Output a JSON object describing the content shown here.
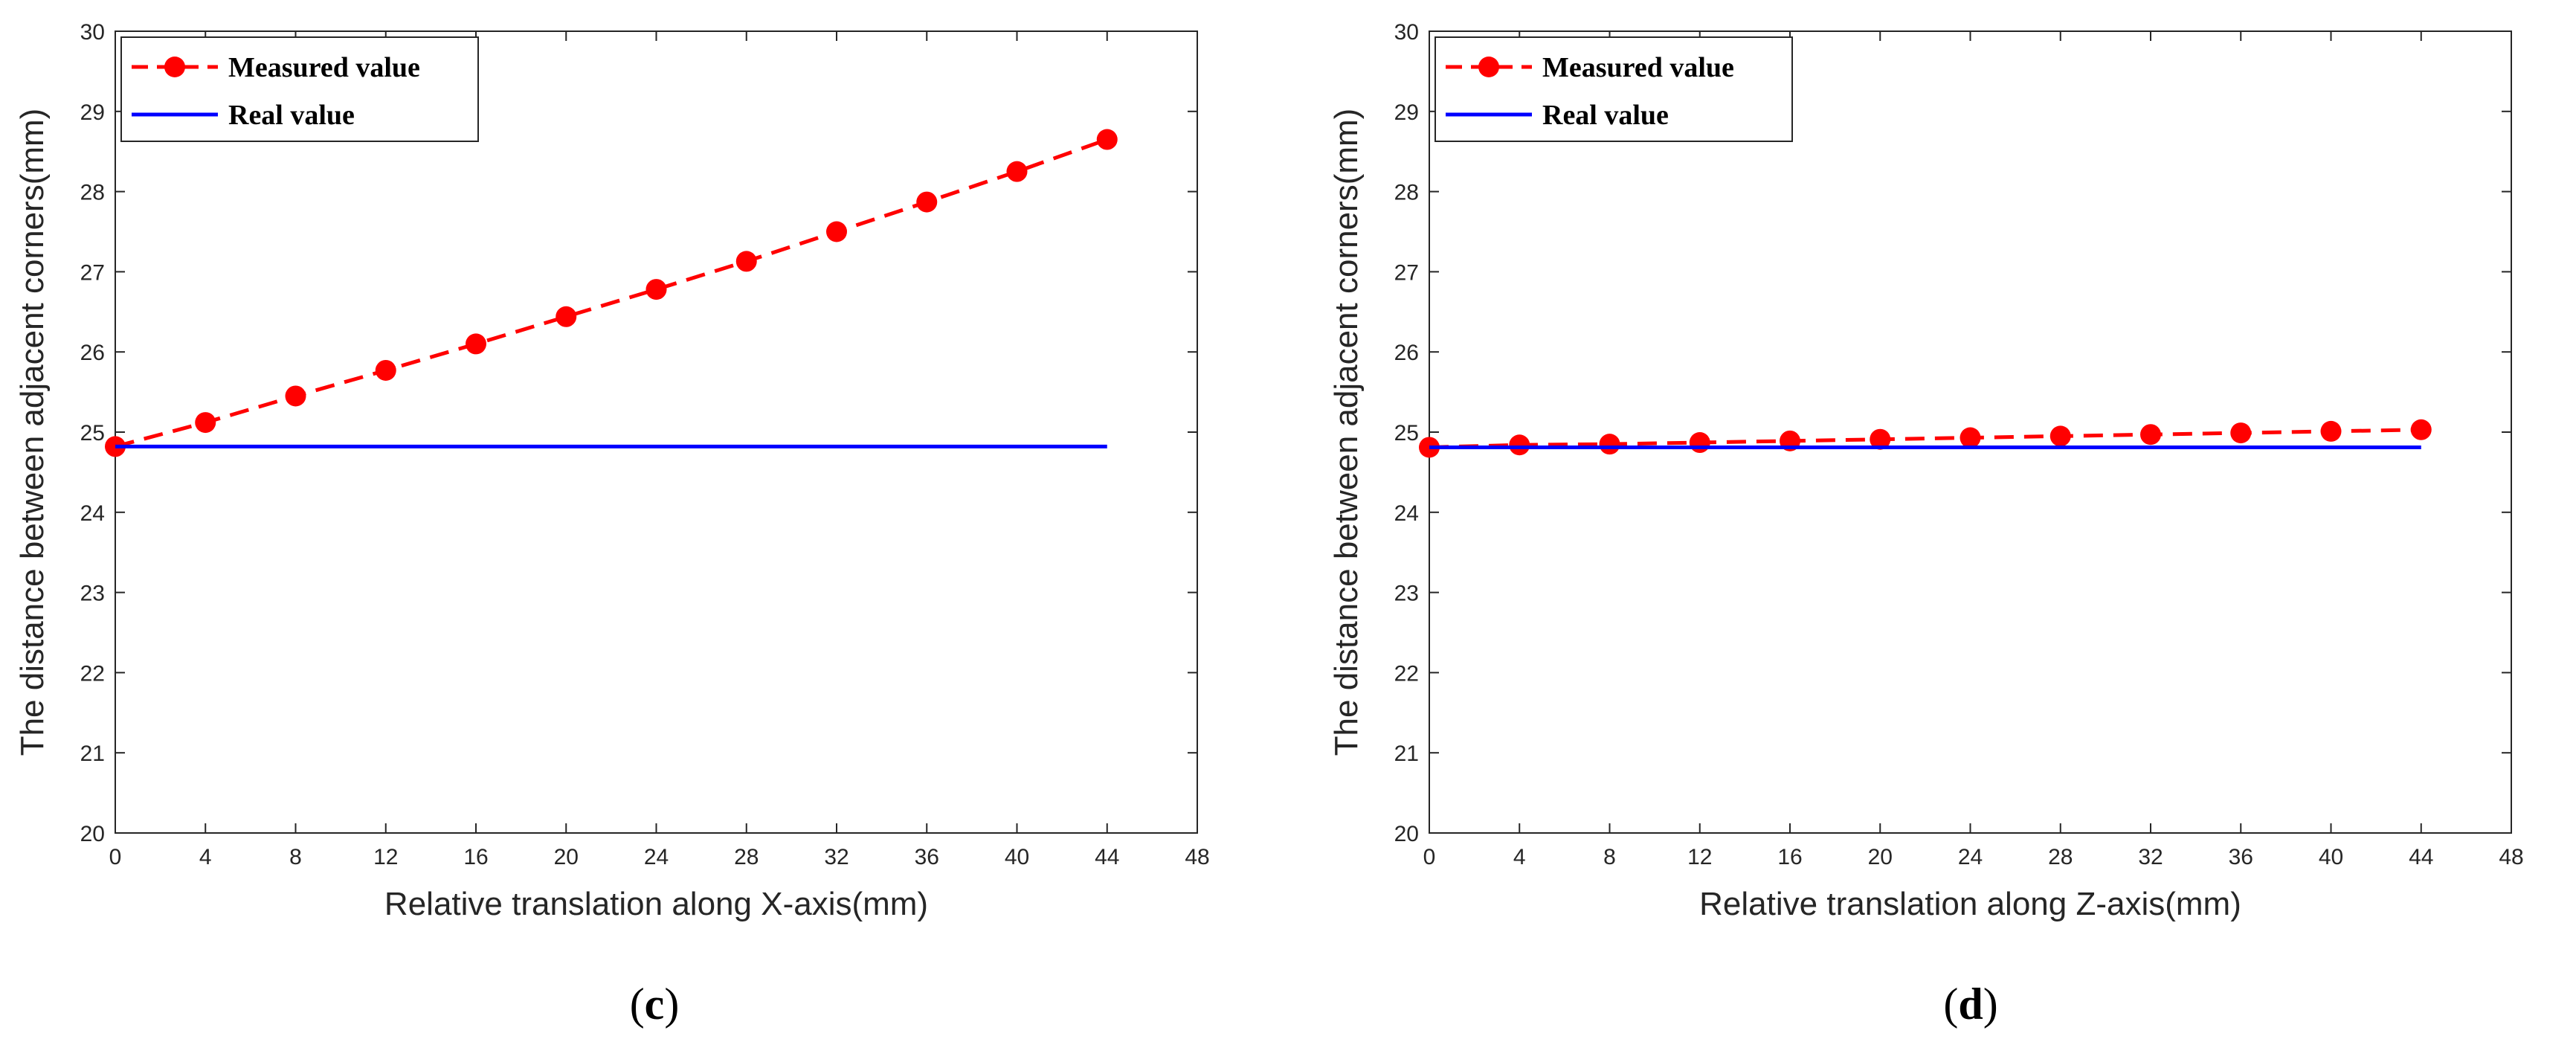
{
  "chart_data": [
    {
      "type": "line",
      "caption": "c",
      "xlabel": "Relative translation along X-axis(mm)",
      "ylabel": "The distance between adjacent corners(mm)",
      "xlim": [
        0,
        48
      ],
      "ylim": [
        20,
        30
      ],
      "xticks": [
        0,
        4,
        8,
        12,
        16,
        20,
        24,
        28,
        32,
        36,
        40,
        44,
        48
      ],
      "yticks": [
        20,
        21,
        22,
        23,
        24,
        25,
        26,
        27,
        28,
        29,
        30
      ],
      "grid": false,
      "legend_position": "top-left",
      "series": [
        {
          "name": "Measured value",
          "style": "dashed-with-markers",
          "color": "#ff0000",
          "x": [
            0,
            4,
            8,
            12,
            16,
            20,
            24,
            28,
            32,
            36,
            40,
            44
          ],
          "y": [
            24.82,
            25.12,
            25.45,
            25.77,
            26.1,
            26.44,
            26.78,
            27.13,
            27.5,
            27.87,
            28.25,
            28.65
          ]
        },
        {
          "name": "Real value",
          "style": "solid",
          "color": "#0000ff",
          "x": [
            0,
            44
          ],
          "y": [
            24.82,
            24.82
          ]
        }
      ]
    },
    {
      "type": "line",
      "caption": "d",
      "xlabel": "Relative translation along Z-axis(mm)",
      "ylabel": "The distance between adjacent corners(mm)",
      "xlim": [
        0,
        48
      ],
      "ylim": [
        20,
        30
      ],
      "xticks": [
        0,
        4,
        8,
        12,
        16,
        20,
        24,
        28,
        32,
        36,
        40,
        44,
        48
      ],
      "yticks": [
        20,
        21,
        22,
        23,
        24,
        25,
        26,
        27,
        28,
        29,
        30
      ],
      "grid": false,
      "legend_position": "top-left",
      "series": [
        {
          "name": "Measured value",
          "style": "dashed-with-markers",
          "color": "#ff0000",
          "x": [
            0,
            4,
            8,
            12,
            16,
            20,
            24,
            28,
            32,
            36,
            40,
            44
          ],
          "y": [
            24.81,
            24.84,
            24.85,
            24.87,
            24.89,
            24.91,
            24.93,
            24.95,
            24.97,
            24.99,
            25.01,
            25.03
          ]
        },
        {
          "name": "Real value",
          "style": "solid",
          "color": "#0000ff",
          "x": [
            0,
            44
          ],
          "y": [
            24.81,
            24.81
          ]
        }
      ]
    }
  ]
}
